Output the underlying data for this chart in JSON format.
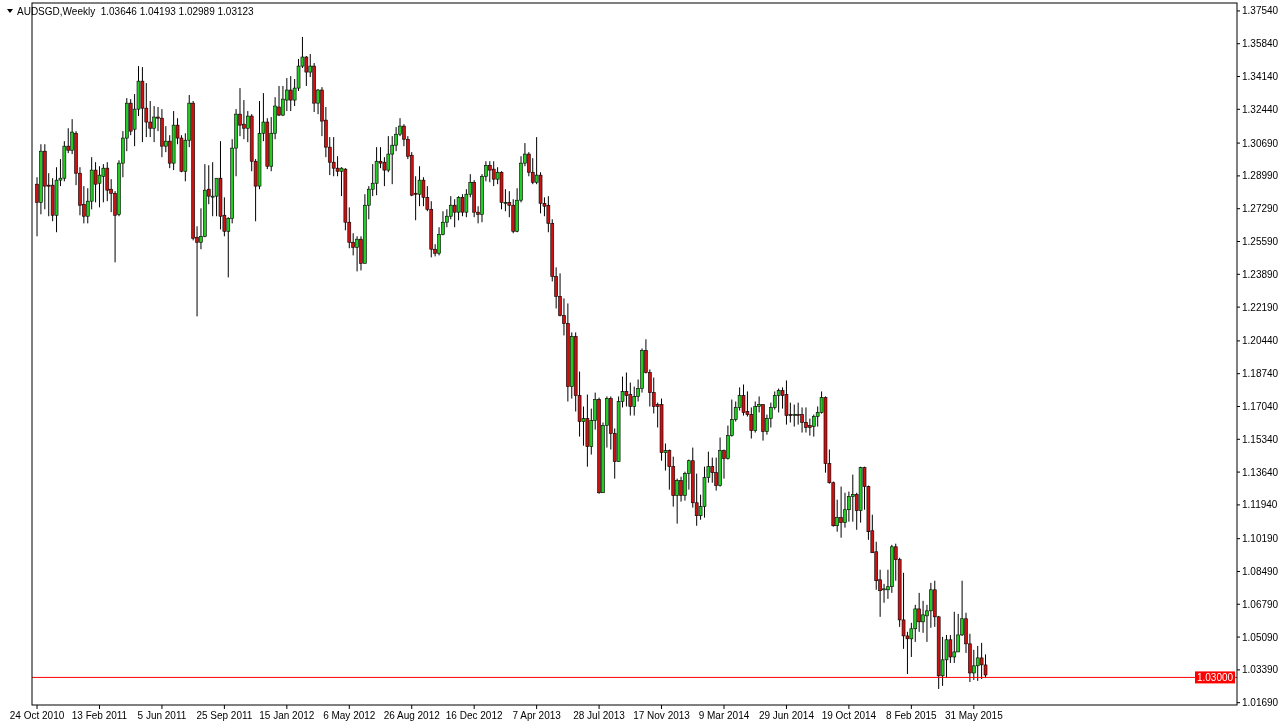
{
  "chart_data": {
    "type": "candlestick",
    "title": "AUDSGD,Weekly  1.03646 1.04193 1.02989 1.03123",
    "x": [
      "2010-10-24",
      "2010-10-31",
      "2010-11-07",
      "2010-11-14",
      "2010-11-21",
      "2010-11-28",
      "2010-12-05",
      "2010-12-12",
      "2010-12-19",
      "2010-12-26",
      "2011-01-02",
      "2011-01-09",
      "2011-01-16",
      "2011-01-23",
      "2011-01-30",
      "2011-02-06",
      "2011-02-13",
      "2011-02-20",
      "2011-02-27",
      "2011-03-06",
      "2011-03-13",
      "2011-03-20",
      "2011-03-27",
      "2011-04-03",
      "2011-04-10",
      "2011-04-17",
      "2011-04-24",
      "2011-05-01",
      "2011-05-08",
      "2011-05-15",
      "2011-05-22",
      "2011-05-29",
      "2011-06-05",
      "2011-06-12",
      "2011-06-19",
      "2011-06-26",
      "2011-07-03",
      "2011-07-10",
      "2011-07-17",
      "2011-07-24",
      "2011-07-31",
      "2011-08-07",
      "2011-08-14",
      "2011-08-21",
      "2011-08-28",
      "2011-09-04",
      "2011-09-11",
      "2011-09-18",
      "2011-09-25",
      "2011-10-02",
      "2011-10-09",
      "2011-10-16",
      "2011-10-23",
      "2011-10-30",
      "2011-11-06",
      "2011-11-13",
      "2011-11-20",
      "2011-11-27",
      "2011-12-04",
      "2011-12-11",
      "2011-12-18",
      "2011-12-25",
      "2012-01-01",
      "2012-01-08",
      "2012-01-15",
      "2012-01-22",
      "2012-01-29",
      "2012-02-05",
      "2012-02-12",
      "2012-02-19",
      "2012-02-26",
      "2012-03-04",
      "2012-03-11",
      "2012-03-18",
      "2012-03-25",
      "2012-04-01",
      "2012-04-08",
      "2012-04-15",
      "2012-04-22",
      "2012-04-29",
      "2012-05-06",
      "2012-05-13",
      "2012-05-20",
      "2012-05-27",
      "2012-06-03",
      "2012-06-10",
      "2012-06-17",
      "2012-06-24",
      "2012-07-01",
      "2012-07-08",
      "2012-07-15",
      "2012-07-22",
      "2012-07-29",
      "2012-08-05",
      "2012-08-12",
      "2012-08-19",
      "2012-08-26",
      "2012-09-02",
      "2012-09-09",
      "2012-09-16",
      "2012-09-23",
      "2012-09-30",
      "2012-10-07",
      "2012-10-14",
      "2012-10-21",
      "2012-10-28",
      "2012-11-04",
      "2012-11-11",
      "2012-11-18",
      "2012-11-25",
      "2012-12-02",
      "2012-12-09",
      "2012-12-16",
      "2012-12-23",
      "2012-12-30",
      "2013-01-06",
      "2013-01-13",
      "2013-01-20",
      "2013-01-27",
      "2013-02-03",
      "2013-02-10",
      "2013-02-17",
      "2013-02-24",
      "2013-03-03",
      "2013-03-10",
      "2013-03-17",
      "2013-03-24",
      "2013-03-31",
      "2013-04-07",
      "2013-04-14",
      "2013-04-21",
      "2013-04-28",
      "2013-05-05",
      "2013-05-12",
      "2013-05-19",
      "2013-05-26",
      "2013-06-02",
      "2013-06-09",
      "2013-06-16",
      "2013-06-23",
      "2013-06-30",
      "2013-07-07",
      "2013-07-14",
      "2013-07-21",
      "2013-07-28",
      "2013-08-04",
      "2013-08-11",
      "2013-08-18",
      "2013-08-25",
      "2013-09-01",
      "2013-09-08",
      "2013-09-15",
      "2013-09-22",
      "2013-09-29",
      "2013-10-06",
      "2013-10-13",
      "2013-10-20",
      "2013-10-27",
      "2013-11-03",
      "2013-11-10",
      "2013-11-17",
      "2013-11-24",
      "2013-12-01",
      "2013-12-08",
      "2013-12-15",
      "2013-12-22",
      "2013-12-29",
      "2014-01-05",
      "2014-01-12",
      "2014-01-19",
      "2014-01-26",
      "2014-02-02",
      "2014-02-09",
      "2014-02-16",
      "2014-02-23",
      "2014-03-02",
      "2014-03-09",
      "2014-03-16",
      "2014-03-23",
      "2014-03-30",
      "2014-04-06",
      "2014-04-13",
      "2014-04-20",
      "2014-04-27",
      "2014-05-04",
      "2014-05-11",
      "2014-05-18",
      "2014-05-25",
      "2014-06-01",
      "2014-06-08",
      "2014-06-15",
      "2014-06-22",
      "2014-06-29",
      "2014-07-06",
      "2014-07-13",
      "2014-07-20",
      "2014-07-27",
      "2014-08-03",
      "2014-08-10",
      "2014-08-17",
      "2014-08-24",
      "2014-08-31",
      "2014-09-07",
      "2014-09-14",
      "2014-09-21",
      "2014-09-28",
      "2014-10-05",
      "2014-10-12",
      "2014-10-19",
      "2014-10-26",
      "2014-11-02",
      "2014-11-09",
      "2014-11-16",
      "2014-11-23",
      "2014-11-30",
      "2014-12-07",
      "2014-12-14",
      "2014-12-21",
      "2014-12-28",
      "2015-01-04",
      "2015-01-11",
      "2015-01-18",
      "2015-01-25",
      "2015-02-01",
      "2015-02-08",
      "2015-02-15",
      "2015-02-22",
      "2015-03-01",
      "2015-03-08",
      "2015-03-15",
      "2015-03-22",
      "2015-03-29",
      "2015-04-05",
      "2015-04-12",
      "2015-04-19",
      "2015-04-26",
      "2015-05-03",
      "2015-05-10",
      "2015-05-17",
      "2015-05-24",
      "2015-05-31",
      "2015-06-07",
      "2015-06-14",
      "2015-06-21"
    ],
    "ohlc": [
      [
        1.2856,
        1.2892,
        1.2586,
        1.2762
      ],
      [
        1.2762,
        1.3063,
        1.27,
        1.3027
      ],
      [
        1.3027,
        1.3063,
        1.2726,
        1.2846
      ],
      [
        1.2851,
        1.2913,
        1.269,
        1.2846
      ],
      [
        1.2851,
        1.2887,
        1.2664,
        1.2695
      ],
      [
        1.2695,
        1.2944,
        1.2607,
        1.2877
      ],
      [
        1.2877,
        1.2986,
        1.2846,
        1.2887
      ],
      [
        1.2887,
        1.3079,
        1.2871,
        1.3053
      ],
      [
        1.3053,
        1.3146,
        1.3017,
        1.3032
      ],
      [
        1.3032,
        1.3193,
        1.3012,
        1.3126
      ],
      [
        1.312,
        1.3131,
        1.2851,
        1.2913
      ],
      [
        1.2913,
        1.2944,
        1.2695,
        1.2747
      ],
      [
        1.2752,
        1.2846,
        1.2653,
        1.269
      ],
      [
        1.269,
        1.2835,
        1.2653,
        1.2768
      ],
      [
        1.2768,
        1.2996,
        1.2726,
        1.2929
      ],
      [
        1.2929,
        1.297,
        1.2762,
        1.2856
      ],
      [
        1.2861,
        1.2949,
        1.2736,
        1.2903
      ],
      [
        1.2897,
        1.296,
        1.2762,
        1.2939
      ],
      [
        1.2939,
        1.297,
        1.2768,
        1.2825
      ],
      [
        1.283,
        1.2882,
        1.2711,
        1.2809
      ],
      [
        1.2809,
        1.282,
        1.2451,
        1.2695
      ],
      [
        1.27,
        1.298,
        1.269,
        1.2965
      ],
      [
        1.2965,
        1.3131,
        1.2892,
        1.3095
      ],
      [
        1.3095,
        1.3302,
        1.3027,
        1.3276
      ],
      [
        1.3276,
        1.3297,
        1.311,
        1.3131
      ],
      [
        1.3141,
        1.3323,
        1.3053,
        1.3245
      ],
      [
        1.3245,
        1.3468,
        1.3209,
        1.339
      ],
      [
        1.339,
        1.3463,
        1.3074,
        1.325
      ],
      [
        1.325,
        1.338,
        1.31,
        1.3178
      ],
      [
        1.3178,
        1.3287,
        1.31,
        1.3146
      ],
      [
        1.3146,
        1.3261,
        1.3074,
        1.3204
      ],
      [
        1.3204,
        1.3256,
        1.3131,
        1.3198
      ],
      [
        1.3198,
        1.3245,
        1.2996,
        1.3053
      ],
      [
        1.3053,
        1.3157,
        1.3022,
        1.3079
      ],
      [
        1.3079,
        1.311,
        1.2939,
        1.2965
      ],
      [
        1.2965,
        1.3235,
        1.2929,
        1.3162
      ],
      [
        1.3162,
        1.3198,
        1.3063,
        1.3095
      ],
      [
        1.3095,
        1.311,
        1.2918,
        1.2923
      ],
      [
        1.2923,
        1.312,
        1.2871,
        1.3084
      ],
      [
        1.3084,
        1.3318,
        1.3048,
        1.3276
      ],
      [
        1.3276,
        1.3287,
        1.2565,
        1.2576
      ],
      [
        1.2581,
        1.2638,
        1.2171,
        1.2555
      ],
      [
        1.2555,
        1.2731,
        1.2519,
        1.2586
      ],
      [
        1.2586,
        1.296,
        1.2581,
        1.2825
      ],
      [
        1.283,
        1.2954,
        1.2752,
        1.2794
      ],
      [
        1.2794,
        1.297,
        1.269,
        1.2794
      ],
      [
        1.2794,
        1.2887,
        1.269,
        1.2887
      ],
      [
        1.2887,
        1.3079,
        1.2622,
        1.269
      ],
      [
        1.2695,
        1.2788,
        1.2586,
        1.2612
      ],
      [
        1.2612,
        1.2685,
        1.2373,
        1.2679
      ],
      [
        1.2679,
        1.3089,
        1.2653,
        1.3043
      ],
      [
        1.3043,
        1.3245,
        1.2897,
        1.3219
      ],
      [
        1.3219,
        1.3354,
        1.3105,
        1.3162
      ],
      [
        1.3167,
        1.3292,
        1.3089,
        1.3146
      ],
      [
        1.3146,
        1.3235,
        1.3074,
        1.3209
      ],
      [
        1.3209,
        1.3219,
        1.2923,
        1.2975
      ],
      [
        1.2975,
        1.2986,
        1.2664,
        1.2846
      ],
      [
        1.2846,
        1.3287,
        1.283,
        1.312
      ],
      [
        1.312,
        1.3328,
        1.3079,
        1.3178
      ],
      [
        1.3178,
        1.3198,
        1.2934,
        1.2949
      ],
      [
        1.2949,
        1.3204,
        1.2923,
        1.312
      ],
      [
        1.312,
        1.3307,
        1.3089,
        1.3261
      ],
      [
        1.3256,
        1.3365,
        1.3209,
        1.3214
      ],
      [
        1.3214,
        1.3365,
        1.3209,
        1.3297
      ],
      [
        1.3292,
        1.3406,
        1.3235,
        1.3344
      ],
      [
        1.3344,
        1.3416,
        1.3235,
        1.3292
      ],
      [
        1.3292,
        1.3401,
        1.3261,
        1.3354
      ],
      [
        1.3354,
        1.3505,
        1.3339,
        1.3468
      ],
      [
        1.3468,
        1.3619,
        1.3458,
        1.3515
      ],
      [
        1.3515,
        1.352,
        1.3365,
        1.3437
      ],
      [
        1.3437,
        1.3531,
        1.3411,
        1.3468
      ],
      [
        1.3468,
        1.3484,
        1.323,
        1.3276
      ],
      [
        1.3276,
        1.3349,
        1.3219,
        1.3344
      ],
      [
        1.3344,
        1.3359,
        1.3105,
        1.3183
      ],
      [
        1.3188,
        1.3256,
        1.2996,
        1.3048
      ],
      [
        1.3048,
        1.31,
        1.2903,
        1.297
      ],
      [
        1.297,
        1.31,
        1.2897,
        1.2939
      ],
      [
        1.2939,
        1.3001,
        1.2897,
        1.2923
      ],
      [
        1.2923,
        1.2944,
        1.2794,
        1.2939
      ],
      [
        1.2934,
        1.2939,
        1.2617,
        1.2659
      ],
      [
        1.2659,
        1.2736,
        1.2524,
        1.2555
      ],
      [
        1.2555,
        1.2602,
        1.2487,
        1.2529
      ],
      [
        1.2529,
        1.2586,
        1.2404,
        1.2571
      ],
      [
        1.2571,
        1.2586,
        1.2409,
        1.2446
      ],
      [
        1.2446,
        1.2804,
        1.2446,
        1.2747
      ],
      [
        1.2747,
        1.2846,
        1.2674,
        1.283
      ],
      [
        1.283,
        1.296,
        1.2794,
        1.2861
      ],
      [
        1.2861,
        1.3048,
        1.2799,
        1.2975
      ],
      [
        1.2975,
        1.3048,
        1.2939,
        1.2965
      ],
      [
        1.297,
        1.2996,
        1.2846,
        1.2929
      ],
      [
        1.2929,
        1.3105,
        1.2918,
        1.3012
      ],
      [
        1.3012,
        1.3105,
        1.2856,
        1.3058
      ],
      [
        1.3058,
        1.3152,
        1.3027,
        1.3115
      ],
      [
        1.3115,
        1.3198,
        1.3105,
        1.3157
      ],
      [
        1.3157,
        1.3167,
        1.3053,
        1.3089
      ],
      [
        1.3089,
        1.3105,
        1.2986,
        1.3001
      ],
      [
        1.3006,
        1.3022,
        1.2794,
        1.2799
      ],
      [
        1.2809,
        1.2897,
        1.2669,
        1.2804
      ],
      [
        1.2804,
        1.2949,
        1.2742,
        1.2877
      ],
      [
        1.2877,
        1.2892,
        1.2742,
        1.2788
      ],
      [
        1.2788,
        1.2846,
        1.2716,
        1.2726
      ],
      [
        1.2726,
        1.2768,
        1.2477,
        1.2519
      ],
      [
        1.2519,
        1.2545,
        1.2482,
        1.2498
      ],
      [
        1.2498,
        1.2633,
        1.2487,
        1.2596
      ],
      [
        1.2596,
        1.2716,
        1.2591,
        1.2659
      ],
      [
        1.2659,
        1.2726,
        1.2633,
        1.269
      ],
      [
        1.269,
        1.2794,
        1.2674,
        1.2747
      ],
      [
        1.2747,
        1.2778,
        1.2633,
        1.2711
      ],
      [
        1.2711,
        1.2794,
        1.2669,
        1.2788
      ],
      [
        1.2788,
        1.2804,
        1.269,
        1.2711
      ],
      [
        1.2711,
        1.283,
        1.2685,
        1.2804
      ],
      [
        1.2804,
        1.2908,
        1.2788,
        1.2866
      ],
      [
        1.2866,
        1.2877,
        1.2685,
        1.2711
      ],
      [
        1.2711,
        1.2742,
        1.2653,
        1.27
      ],
      [
        1.27,
        1.2908,
        1.2659,
        1.2897
      ],
      [
        1.2897,
        1.2975,
        1.2871,
        1.2954
      ],
      [
        1.2954,
        1.2975,
        1.2866,
        1.2929
      ],
      [
        1.2934,
        1.2975,
        1.2846,
        1.2882
      ],
      [
        1.2882,
        1.2944,
        1.2856,
        1.2918
      ],
      [
        1.2918,
        1.2923,
        1.2726,
        1.2762
      ],
      [
        1.2762,
        1.283,
        1.2716,
        1.2762
      ],
      [
        1.2762,
        1.282,
        1.2685,
        1.2747
      ],
      [
        1.2747,
        1.2778,
        1.2602,
        1.2612
      ],
      [
        1.2612,
        1.2835,
        1.2607,
        1.2773
      ],
      [
        1.2773,
        1.3001,
        1.2762,
        1.2965
      ],
      [
        1.2965,
        1.3069,
        1.2949,
        1.3012
      ],
      [
        1.3012,
        1.3022,
        1.2897,
        1.2918
      ],
      [
        1.2918,
        1.2991,
        1.2856,
        1.2866
      ],
      [
        1.2866,
        1.31,
        1.2856,
        1.2903
      ],
      [
        1.2903,
        1.2918,
        1.2705,
        1.2757
      ],
      [
        1.2757,
        1.2788,
        1.269,
        1.2742
      ],
      [
        1.2747,
        1.2794,
        1.2607,
        1.2653
      ],
      [
        1.2653,
        1.2674,
        1.2352,
        1.2378
      ],
      [
        1.2378,
        1.2425,
        1.2212,
        1.2275
      ],
      [
        1.2275,
        1.2394,
        1.2171,
        1.2176
      ],
      [
        1.2176,
        1.2264,
        1.2072,
        1.2134
      ],
      [
        1.2134,
        1.2238,
        1.173,
        1.1807
      ],
      [
        1.1807,
        1.2088,
        1.1745,
        1.2067
      ],
      [
        1.2067,
        1.2088,
        1.1678,
        1.1761
      ],
      [
        1.1761,
        1.1885,
        1.1548,
        1.1626
      ],
      [
        1.1626,
        1.1704,
        1.1501,
        1.1641
      ],
      [
        1.1641,
        1.1766,
        1.1392,
        1.1496
      ],
      [
        1.1496,
        1.1693,
        1.1455,
        1.1631
      ],
      [
        1.1631,
        1.1776,
        1.1584,
        1.174
      ],
      [
        1.174,
        1.175,
        1.1252,
        1.1257
      ],
      [
        1.1257,
        1.1621,
        1.1257,
        1.1605
      ],
      [
        1.1605,
        1.1756,
        1.1491,
        1.1745
      ],
      [
        1.1745,
        1.1756,
        1.1481,
        1.1564
      ],
      [
        1.1564,
        1.159,
        1.133,
        1.1418
      ],
      [
        1.1418,
        1.1756,
        1.1418,
        1.173
      ],
      [
        1.173,
        1.1859,
        1.1699,
        1.1782
      ],
      [
        1.1782,
        1.188,
        1.1704,
        1.1761
      ],
      [
        1.1766,
        1.1828,
        1.1657,
        1.1704
      ],
      [
        1.1704,
        1.1807,
        1.1657,
        1.1756
      ],
      [
        1.1756,
        1.1844,
        1.173,
        1.1797
      ],
      [
        1.1797,
        1.2005,
        1.1776,
        1.1994
      ],
      [
        1.1994,
        1.2052,
        1.1875,
        1.188
      ],
      [
        1.188,
        1.1896,
        1.1704,
        1.1776
      ],
      [
        1.1776,
        1.1854,
        1.1668,
        1.1704
      ],
      [
        1.1714,
        1.1724,
        1.1595,
        1.1704
      ],
      [
        1.1714,
        1.1745,
        1.1423,
        1.1465
      ],
      [
        1.1465,
        1.1512,
        1.1372,
        1.1475
      ],
      [
        1.1475,
        1.1481,
        1.1273,
        1.1392
      ],
      [
        1.1392,
        1.1444,
        1.1185,
        1.1242
      ],
      [
        1.1242,
        1.133,
        1.1097,
        1.132
      ],
      [
        1.132,
        1.134,
        1.1211,
        1.1242
      ],
      [
        1.1242,
        1.1366,
        1.1216,
        1.1356
      ],
      [
        1.1356,
        1.1429,
        1.1273,
        1.1423
      ],
      [
        1.1423,
        1.1491,
        1.118,
        1.1205
      ],
      [
        1.1205,
        1.1356,
        1.1086,
        1.1138
      ],
      [
        1.1138,
        1.1247,
        1.1117,
        1.1185
      ],
      [
        1.1185,
        1.1392,
        1.1128,
        1.1335
      ],
      [
        1.1335,
        1.147,
        1.1309,
        1.1392
      ],
      [
        1.1392,
        1.1439,
        1.1309,
        1.1361
      ],
      [
        1.1361,
        1.1439,
        1.1268,
        1.1294
      ],
      [
        1.1294,
        1.1543,
        1.1289,
        1.1475
      ],
      [
        1.1475,
        1.1481,
        1.133,
        1.1434
      ],
      [
        1.1434,
        1.1605,
        1.1429,
        1.1553
      ],
      [
        1.1553,
        1.174,
        1.1548,
        1.1636
      ],
      [
        1.1636,
        1.173,
        1.1626,
        1.1699
      ],
      [
        1.1699,
        1.1803,
        1.1683,
        1.1761
      ],
      [
        1.1761,
        1.1818,
        1.1657,
        1.1673
      ],
      [
        1.1678,
        1.1782,
        1.1652,
        1.1662
      ],
      [
        1.1662,
        1.1699,
        1.1538,
        1.1579
      ],
      [
        1.1579,
        1.173,
        1.1569,
        1.1704
      ],
      [
        1.1704,
        1.1756,
        1.1673,
        1.1714
      ],
      [
        1.1714,
        1.1714,
        1.1527,
        1.1574
      ],
      [
        1.1574,
        1.1662,
        1.1558,
        1.1641
      ],
      [
        1.1641,
        1.1724,
        1.1595,
        1.1699
      ],
      [
        1.1699,
        1.1782,
        1.1688,
        1.1761
      ],
      [
        1.1761,
        1.1797,
        1.1673,
        1.1787
      ],
      [
        1.1787,
        1.1803,
        1.1693,
        1.1761
      ],
      [
        1.1766,
        1.1839,
        1.161,
        1.1657
      ],
      [
        1.1662,
        1.1724,
        1.1621,
        1.1657
      ],
      [
        1.1662,
        1.1714,
        1.16,
        1.1662
      ],
      [
        1.1662,
        1.1724,
        1.161,
        1.1657
      ],
      [
        1.1662,
        1.1699,
        1.1569,
        1.1621
      ],
      [
        1.1621,
        1.1699,
        1.1569,
        1.1595
      ],
      [
        1.1605,
        1.1641,
        1.1553,
        1.1595
      ],
      [
        1.16,
        1.1662,
        1.1548,
        1.1652
      ],
      [
        1.1652,
        1.1704,
        1.16,
        1.1673
      ],
      [
        1.1673,
        1.1782,
        1.1667,
        1.175
      ],
      [
        1.175,
        1.1756,
        1.1361,
        1.1408
      ],
      [
        1.1408,
        1.1481,
        1.1304,
        1.1309
      ],
      [
        1.1309,
        1.1315,
        1.1081,
        1.1086
      ],
      [
        1.1086,
        1.1221,
        1.1055,
        1.1128
      ],
      [
        1.1128,
        1.1289,
        1.1024,
        1.1102
      ],
      [
        1.1102,
        1.1257,
        1.1076,
        1.1169
      ],
      [
        1.1169,
        1.1263,
        1.1107,
        1.1237
      ],
      [
        1.1237,
        1.1351,
        1.1107,
        1.1247
      ],
      [
        1.1247,
        1.1257,
        1.1065,
        1.1164
      ],
      [
        1.1164,
        1.1392,
        1.1102,
        1.1387
      ],
      [
        1.1387,
        1.1392,
        1.1169,
        1.1289
      ],
      [
        1.1289,
        1.1294,
        1.1013,
        1.1055
      ],
      [
        1.106,
        1.1143,
        1.0946,
        1.0946
      ],
      [
        1.0951,
        1.1003,
        1.0754,
        1.0801
      ],
      [
        1.0806,
        1.0858,
        1.0614,
        1.0749
      ],
      [
        1.0754,
        1.0785,
        1.0687,
        1.0759
      ],
      [
        1.0754,
        1.0858,
        1.0707,
        1.077
      ],
      [
        1.077,
        1.0987,
        1.0738,
        1.0977
      ],
      [
        1.0977,
        1.0993,
        1.0801,
        1.091
      ],
      [
        1.091,
        1.092,
        1.0562,
        1.0598
      ],
      [
        1.0598,
        1.0842,
        1.0448,
        1.0515
      ],
      [
        1.0515,
        1.0536,
        1.0318,
        1.05
      ],
      [
        1.05,
        1.0583,
        1.0406,
        1.0552
      ],
      [
        1.0552,
        1.0676,
        1.0484,
        1.0655
      ],
      [
        1.0655,
        1.0738,
        1.0536,
        1.0588
      ],
      [
        1.0588,
        1.0697,
        1.0531,
        1.0624
      ],
      [
        1.0619,
        1.0676,
        1.0484,
        1.0645
      ],
      [
        1.0645,
        1.079,
        1.0557,
        1.0754
      ],
      [
        1.0754,
        1.0801,
        1.0562,
        1.0614
      ],
      [
        1.0614,
        1.0619,
        1.024,
        1.0308
      ],
      [
        1.0308,
        1.051,
        1.0256,
        1.0391
      ],
      [
        1.0391,
        1.052,
        1.0297,
        1.0495
      ],
      [
        1.0495,
        1.052,
        1.0375,
        1.0406
      ],
      [
        1.0406,
        1.064,
        1.0375,
        1.0432
      ],
      [
        1.0432,
        1.0629,
        1.0432,
        1.052
      ],
      [
        1.052,
        1.0801,
        1.0515,
        1.0604
      ],
      [
        1.0604,
        1.0635,
        1.0427,
        1.0474
      ],
      [
        1.0474,
        1.0526,
        1.0276,
        1.0323
      ],
      [
        1.0323,
        1.0443,
        1.0287,
        1.036
      ],
      [
        1.036,
        1.0463,
        1.0282,
        1.0401
      ],
      [
        1.0401,
        1.0479,
        1.0292,
        1.0365
      ],
      [
        1.03646,
        1.04193,
        1.02989,
        1.03123
      ]
    ],
    "xlim": [
      "2010-10-15",
      "2016-09-14"
    ],
    "xticks": [
      {
        "value": "2010-10-24",
        "label": "24 Oct 2010"
      },
      {
        "value": "2011-02-13",
        "label": "13 Feb 2011"
      },
      {
        "value": "2011-06-05",
        "label": "5 Jun 2011"
      },
      {
        "value": "2011-09-25",
        "label": "25 Sep 2011"
      },
      {
        "value": "2012-01-15",
        "label": "15 Jan 2012"
      },
      {
        "value": "2012-05-06",
        "label": "6 May 2012"
      },
      {
        "value": "2012-08-26",
        "label": "26 Aug 2012"
      },
      {
        "value": "2012-12-16",
        "label": "16 Dec 2012"
      },
      {
        "value": "2013-04-07",
        "label": "7 Apr 2013"
      },
      {
        "value": "2013-07-28",
        "label": "28 Jul 2013"
      },
      {
        "value": "2013-11-17",
        "label": "17 Nov 2013"
      },
      {
        "value": "2014-03-09",
        "label": "9 Mar 2014"
      },
      {
        "value": "2014-06-29",
        "label": "29 Jun 2014"
      },
      {
        "value": "2014-10-19",
        "label": "19 Oct 2014"
      },
      {
        "value": "2015-02-08",
        "label": "8 Feb 2015"
      },
      {
        "value": "2015-05-31",
        "label": "31 May 2015"
      }
    ],
    "ylim": [
      1.0157,
      1.3795
    ],
    "yticks": [
      {
        "value": 1.3754,
        "label": "1.37540"
      },
      {
        "value": 1.3584,
        "label": "1.35840"
      },
      {
        "value": 1.3414,
        "label": "1.34140"
      },
      {
        "value": 1.3244,
        "label": "1.32440"
      },
      {
        "value": 1.3069,
        "label": "1.30690"
      },
      {
        "value": 1.2899,
        "label": "1.28990"
      },
      {
        "value": 1.2729,
        "label": "1.27290"
      },
      {
        "value": 1.2559,
        "label": "1.25590"
      },
      {
        "value": 1.2389,
        "label": "1.23890"
      },
      {
        "value": 1.2219,
        "label": "1.22190"
      },
      {
        "value": 1.2044,
        "label": "1.20440"
      },
      {
        "value": 1.1874,
        "label": "1.18740"
      },
      {
        "value": 1.1704,
        "label": "1.17040"
      },
      {
        "value": 1.1534,
        "label": "1.15340"
      },
      {
        "value": 1.1364,
        "label": "1.13640"
      },
      {
        "value": 1.1194,
        "label": "1.11940"
      },
      {
        "value": 1.1019,
        "label": "1.10190"
      },
      {
        "value": 1.0849,
        "label": "1.08490"
      },
      {
        "value": 1.0679,
        "label": "1.06790"
      },
      {
        "value": 1.0509,
        "label": "1.05090"
      },
      {
        "value": 1.0339,
        "label": "1.03390"
      },
      {
        "value": 1.0169,
        "label": "1.01690"
      }
    ],
    "ref_lines": [
      {
        "axis": "y",
        "value": 1.03,
        "label": "1.03000",
        "color": "#ff0000"
      }
    ]
  }
}
